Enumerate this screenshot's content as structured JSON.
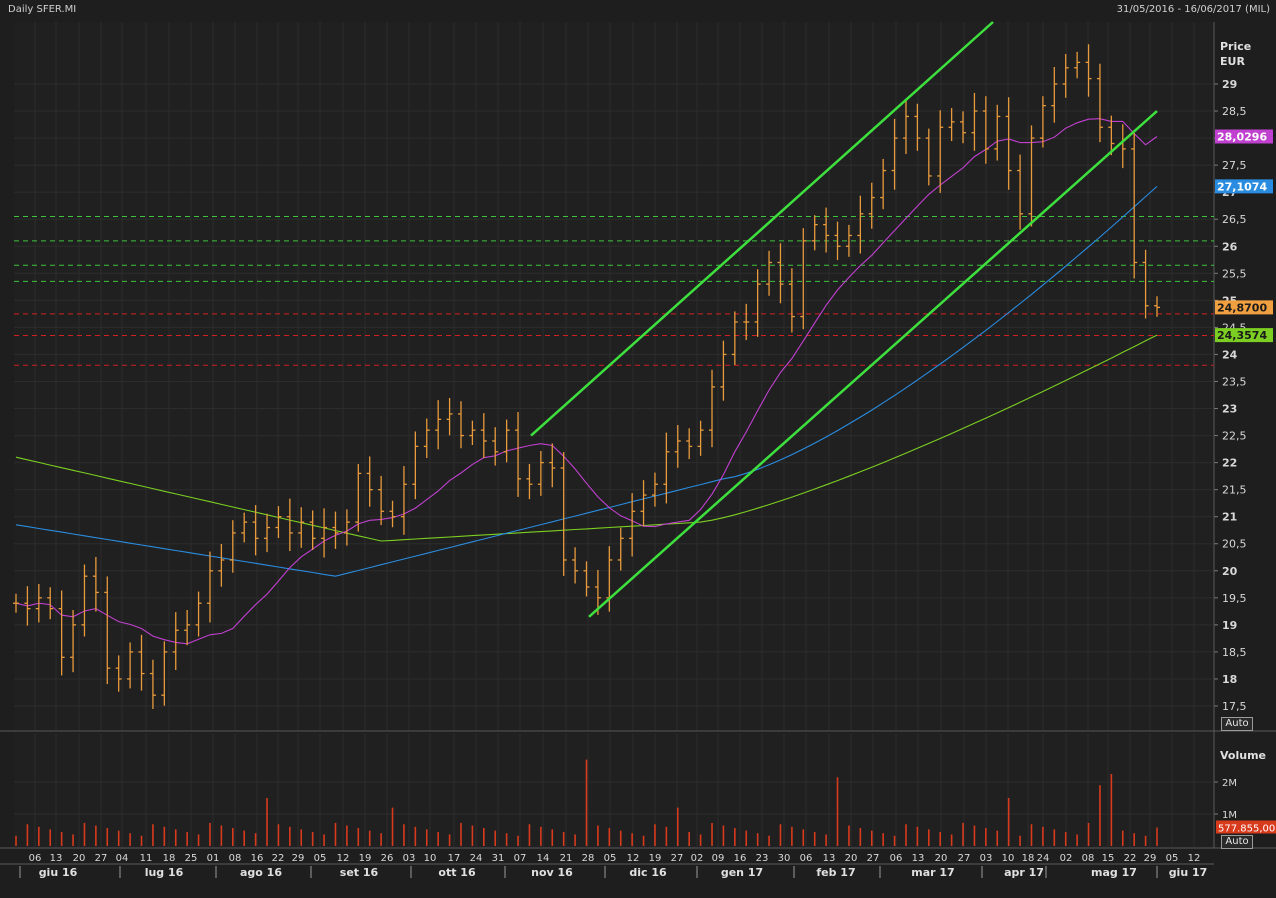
{
  "header": {
    "title": "Daily SFER.MI",
    "range": "31/05/2016 - 16/06/2017 (MIL)"
  },
  "price_panel": {
    "label_line1": "Price",
    "label_line2": "EUR",
    "auto_label": "Auto",
    "tags": [
      {
        "text": "28,0296",
        "value": 28.0296,
        "color": "#c040d0"
      },
      {
        "text": "27,1074",
        "value": 27.1074,
        "color": "#2a8ce0"
      },
      {
        "text": "24,8700",
        "value": 24.87,
        "color": "#f0a040"
      },
      {
        "text": "24,3574",
        "value": 24.3574,
        "color": "#7ccf22"
      }
    ]
  },
  "volume_panel": {
    "label": "Volume",
    "ticks": [
      "2M",
      "1M"
    ],
    "tick_values": [
      2000000,
      1000000
    ],
    "last_tag": "577.855,00",
    "last_value": 577855,
    "auto_label": "Auto"
  },
  "x_axis": {
    "day_labels": [
      "06",
      "13",
      "20",
      "27",
      "04",
      "11",
      "18",
      "25",
      "01",
      "08",
      "16",
      "22",
      "29",
      "05",
      "12",
      "19",
      "26",
      "03",
      "10",
      "17",
      "24",
      "31",
      "07",
      "14",
      "21",
      "28",
      "05",
      "12",
      "19",
      "27",
      "02",
      "09",
      "16",
      "23",
      "30",
      "06",
      "13",
      "20",
      "27",
      "06",
      "13",
      "20",
      "27",
      "03",
      "10",
      "18",
      "24",
      "02",
      "08",
      "15",
      "22",
      "29",
      "05",
      "12"
    ],
    "month_labels": [
      "giu 16",
      "lug 16",
      "ago 16",
      "set 16",
      "ott 16",
      "nov 16",
      "dic 16",
      "gen 17",
      "feb 17",
      "mar 17",
      "apr 17",
      "mag 17",
      "giu 17"
    ]
  },
  "chart_data": [
    {
      "type": "line",
      "title": "Daily SFER.MI",
      "x_range": [
        "31/05/2016",
        "16/06/2017"
      ],
      "ylabel": "Price EUR",
      "ylim": [
        17.2,
        29.8
      ],
      "y_ticks": [
        17.5,
        18,
        18.5,
        19,
        19.5,
        20,
        20.5,
        21,
        21.5,
        22,
        22.5,
        23,
        23.5,
        24,
        24.5,
        25,
        25.5,
        26,
        26.5,
        27,
        27.5,
        28,
        28.5,
        29
      ],
      "grid": true,
      "price_series_style": "OHLC bars",
      "price_closes": [
        19.4,
        19.3,
        19.5,
        19.3,
        18.4,
        19.0,
        19.9,
        19.6,
        18.2,
        18.0,
        18.5,
        18.1,
        17.7,
        18.5,
        18.9,
        19.0,
        19.4,
        20.0,
        20.2,
        20.7,
        20.9,
        20.6,
        20.8,
        21.0,
        20.7,
        20.9,
        20.6,
        20.8,
        20.7,
        20.9,
        21.8,
        21.5,
        21.1,
        21.0,
        21.6,
        22.3,
        22.6,
        22.8,
        22.9,
        22.5,
        22.6,
        22.4,
        22.2,
        22.6,
        21.7,
        21.6,
        22.0,
        21.9,
        20.2,
        20.0,
        19.7,
        19.5,
        20.2,
        20.6,
        21.1,
        21.4,
        21.6,
        22.2,
        22.4,
        22.3,
        22.6,
        23.4,
        24.0,
        24.6,
        24.6,
        25.3,
        25.7,
        25.3,
        24.7,
        26.1,
        26.4,
        26.2,
        26.0,
        26.2,
        26.6,
        26.9,
        27.4,
        28.0,
        28.4,
        28.0,
        27.3,
        28.2,
        28.3,
        28.1,
        28.5,
        27.8,
        28.4,
        27.4,
        26.6,
        28.0,
        28.6,
        29.0,
        29.3,
        29.4,
        29.1,
        28.2,
        27.9,
        27.8,
        25.7,
        24.9,
        24.87
      ],
      "horizontal_levels": {
        "green_dashed": [
          26.55,
          26.1,
          25.65,
          25.35
        ],
        "red_dashed": [
          24.75,
          24.35,
          23.8
        ]
      },
      "trend_channel": {
        "upper_line": [
          {
            "x": "nov 16",
            "y": 22.5
          },
          {
            "x": "apr 17",
            "y": 30.0
          }
        ],
        "lower_line": [
          {
            "x": "28 nov 16",
            "y": 19.15
          },
          {
            "x": "29 mag 17",
            "y": 28.5
          }
        ]
      },
      "series": [
        {
          "style": "moving average",
          "color": "#c040d0",
          "last_value": 28.0296
        },
        {
          "style": "moving average",
          "color": "#2a8ce0",
          "last_value": 27.1074
        },
        {
          "style": "moving average",
          "color": "#7ccf22",
          "last_value": 24.3574
        },
        {
          "style": "last price",
          "color": "#f0a040",
          "last_value": 24.87
        }
      ]
    },
    {
      "type": "bar",
      "title": "Volume",
      "ylim": [
        0,
        2900000
      ],
      "y_ticks": [
        1000000,
        2000000
      ],
      "last_value": 577855,
      "peaks": [
        {
          "x": "nov 16",
          "value": 2700000
        },
        {
          "x": "feb 17",
          "value": 2150000
        },
        {
          "x": "mag 17",
          "value": 2250000
        }
      ]
    }
  ]
}
